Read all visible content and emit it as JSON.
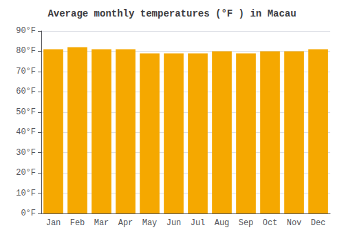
{
  "chart_data": {
    "type": "bar",
    "title": "Average monthly temperatures (°F ) in Macau",
    "categories": [
      "Jan",
      "Feb",
      "Mar",
      "Apr",
      "May",
      "Jun",
      "Jul",
      "Aug",
      "Sep",
      "Oct",
      "Nov",
      "Dec"
    ],
    "values": [
      81,
      82,
      81,
      81,
      79,
      79,
      79,
      80,
      79,
      80,
      80,
      81
    ],
    "color": "#F5A800",
    "ylim": [
      0,
      90
    ],
    "yticks": [
      {
        "value": 0,
        "label": "0°F"
      },
      {
        "value": 10,
        "label": "10°F"
      },
      {
        "value": 20,
        "label": "20°F"
      },
      {
        "value": 30,
        "label": "30°F"
      },
      {
        "value": 40,
        "label": "40°F"
      },
      {
        "value": 50,
        "label": "50°F"
      },
      {
        "value": 60,
        "label": "60°F"
      },
      {
        "value": 70,
        "label": "70°F"
      },
      {
        "value": 80,
        "label": "80°F"
      },
      {
        "value": 90,
        "label": "90°F"
      }
    ],
    "grid": true
  }
}
